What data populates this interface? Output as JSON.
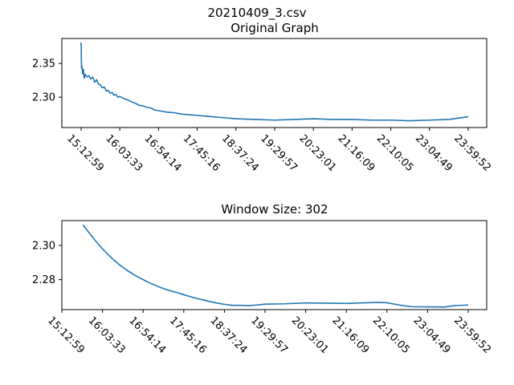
{
  "figure": {
    "suptitle": "20210409_3.csv"
  },
  "chart_data": [
    {
      "type": "line",
      "title": "Original Graph",
      "xlabel": "",
      "ylabel": "",
      "x_tick_labels": [
        "15:12:59",
        "16:03:33",
        "16:54:14",
        "17:45:16",
        "18:37:24",
        "19:29:57",
        "20:23:01",
        "21:16:09",
        "22:10:05",
        "23:04:49",
        "23:59:52"
      ],
      "y_ticks": [
        2.3,
        2.35
      ],
      "y_tick_labels": [
        "2.30",
        "2.35"
      ],
      "ylim": [
        2.255,
        2.387
      ],
      "grid": false,
      "color": "#1f77b4",
      "series": [
        {
          "x": [
            0,
            0.01,
            0.02,
            0.04,
            0.06,
            0.08,
            0.1,
            0.15,
            0.2,
            0.25,
            0.3,
            0.35,
            0.4,
            0.45,
            0.5,
            0.55,
            0.6,
            0.65,
            0.7,
            0.75,
            0.8,
            0.85,
            0.9,
            0.95,
            1.0,
            1.1,
            1.2,
            1.3,
            1.4,
            1.5,
            1.6,
            1.7,
            1.8,
            1.9,
            2.0,
            2.2,
            2.4,
            2.6,
            2.8,
            3.0,
            3.2,
            3.4,
            3.6,
            3.8,
            4.0,
            4.5,
            5.0,
            5.5,
            6.0,
            6.5,
            7.0,
            7.5,
            8.0,
            8.5,
            9.0,
            9.5,
            10.0
          ],
          "y": [
            2.381,
            2.343,
            2.346,
            2.335,
            2.341,
            2.328,
            2.334,
            2.33,
            2.332,
            2.327,
            2.33,
            2.322,
            2.326,
            2.319,
            2.318,
            2.314,
            2.315,
            2.309,
            2.31,
            2.306,
            2.307,
            2.303,
            2.304,
            2.3,
            2.301,
            2.298,
            2.296,
            2.293,
            2.291,
            2.288,
            2.287,
            2.285,
            2.284,
            2.281,
            2.28,
            2.278,
            2.277,
            2.275,
            2.274,
            2.273,
            2.272,
            2.271,
            2.27,
            2.269,
            2.268,
            2.267,
            2.266,
            2.267,
            2.268,
            2.267,
            2.267,
            2.266,
            2.266,
            2.265,
            2.266,
            2.267,
            2.271
          ]
        }
      ]
    },
    {
      "type": "line",
      "title": "Window Size: 302",
      "xlabel": "",
      "ylabel": "",
      "x_tick_labels": [
        "15:12:59",
        "16:03:33",
        "16:54:14",
        "17:45:16",
        "18:37:24",
        "19:29:57",
        "20:23:01",
        "21:16:09",
        "22:10:05",
        "23:04:49",
        "23:59:52"
      ],
      "y_ticks": [
        2.28,
        2.3
      ],
      "y_tick_labels": [
        "2.28",
        "2.30"
      ],
      "ylim": [
        2.2625,
        2.3145
      ],
      "grid": false,
      "color": "#1f77b4",
      "series": [
        {
          "x": [
            0.52,
            0.6,
            0.7,
            0.8,
            0.9,
            1.0,
            1.1,
            1.2,
            1.3,
            1.4,
            1.5,
            1.6,
            1.7,
            1.8,
            1.9,
            2.0,
            2.1,
            2.2,
            2.3,
            2.4,
            2.5,
            2.6,
            2.7,
            2.8,
            2.9,
            3.0,
            3.2,
            3.4,
            3.6,
            3.8,
            4.0,
            4.2,
            4.4,
            4.6,
            4.8,
            5.0,
            5.5,
            6.0,
            6.5,
            7.0,
            7.5,
            7.8,
            8.0,
            8.3,
            8.6,
            9.0,
            9.4,
            9.7,
            10.0
          ],
          "y": [
            2.312,
            2.3095,
            2.3065,
            2.3035,
            2.3007,
            2.298,
            2.2955,
            2.2932,
            2.291,
            2.289,
            2.2872,
            2.2855,
            2.284,
            2.2825,
            2.2812,
            2.28,
            2.2788,
            2.2777,
            2.2767,
            2.2757,
            2.2748,
            2.274,
            2.2733,
            2.2727,
            2.272,
            2.2712,
            2.2698,
            2.2686,
            2.2674,
            2.2664,
            2.2656,
            2.265,
            2.265,
            2.2648,
            2.2652,
            2.2657,
            2.2659,
            2.2664,
            2.2663,
            2.2661,
            2.2665,
            2.2667,
            2.2665,
            2.2652,
            2.2642,
            2.2641,
            2.264,
            2.2649,
            2.2652
          ]
        }
      ]
    }
  ]
}
